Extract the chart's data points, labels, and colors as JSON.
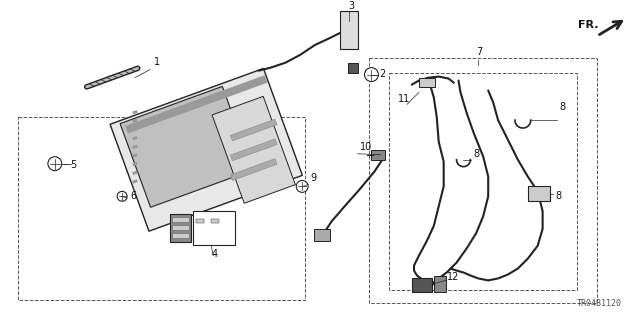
{
  "bg_color": "#ffffff",
  "title": "TR04B1120",
  "fr_label": "FR.",
  "line_color": "#222222",
  "gray_light": "#cccccc",
  "gray_mid": "#888888",
  "gray_dark": "#444444"
}
